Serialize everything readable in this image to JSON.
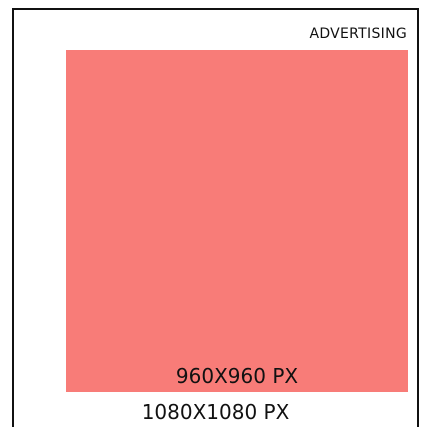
{
  "label": "ADVERTISING",
  "inner_size": "960X960 PX",
  "outer_size": "1080X1080 PX"
}
